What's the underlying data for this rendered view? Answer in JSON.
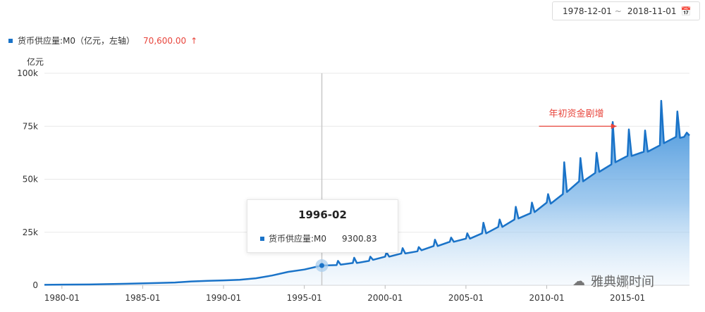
{
  "date_range": {
    "start": "1978-12-01",
    "separator": "~",
    "end": "2018-11-01",
    "icon": "calendar-icon"
  },
  "legend": {
    "label": "货币供应量:M0（亿元，左轴）",
    "value": "70,600.00",
    "arrow": "↑",
    "color": "#1a73c8"
  },
  "tooltip": {
    "title": "1996-02",
    "series": "货币供应量:M0",
    "value": "9300.83"
  },
  "watermark": {
    "text": "雅典娜时间",
    "icon": "wechat-icon"
  },
  "colors": {
    "series": "#1a73c8",
    "annotation": "#e8453c",
    "grid": "#e8e8e8"
  },
  "chart_data": {
    "type": "area",
    "ylabel": "亿元",
    "ylim": [
      0,
      100000
    ],
    "xlim": [
      "1978-12-01",
      "2018-11-01"
    ],
    "y_ticks": [
      "0",
      "25k",
      "50k",
      "75k",
      "100k"
    ],
    "x_ticks": [
      "1980-01",
      "1985-01",
      "1990-01",
      "1995-01",
      "2000-01",
      "2005-01",
      "2010-01",
      "2015-01"
    ],
    "grid": "horizontal",
    "series": [
      {
        "name": "货币供应量:M0",
        "points": [
          [
            "1978-12",
            212
          ],
          [
            "1980-01",
            300
          ],
          [
            "1982-01",
            400
          ],
          [
            "1984-01",
            700
          ],
          [
            "1986-01",
            1100
          ],
          [
            "1987-01",
            1300
          ],
          [
            "1988-01",
            1800
          ],
          [
            "1989-01",
            2100
          ],
          [
            "1990-01",
            2300
          ],
          [
            "1991-01",
            2600
          ],
          [
            "1992-01",
            3300
          ],
          [
            "1993-01",
            4600
          ],
          [
            "1994-01",
            6300
          ],
          [
            "1995-01",
            7400
          ],
          [
            "1996-02",
            9300.83
          ],
          [
            "1997-01",
            9500
          ],
          [
            "1997-02",
            11500
          ],
          [
            "1997-04",
            9700
          ],
          [
            "1998-01",
            10500
          ],
          [
            "1998-02",
            13000
          ],
          [
            "1998-04",
            10500
          ],
          [
            "1999-01",
            11500
          ],
          [
            "1999-02",
            13500
          ],
          [
            "1999-04",
            12000
          ],
          [
            "2000-01",
            13500
          ],
          [
            "2000-02",
            15500
          ],
          [
            "2000-04",
            13500
          ],
          [
            "2001-01",
            15000
          ],
          [
            "2001-02",
            17500
          ],
          [
            "2001-04",
            15000
          ],
          [
            "2002-01",
            16000
          ],
          [
            "2002-02",
            18000
          ],
          [
            "2002-04",
            16500
          ],
          [
            "2003-01",
            18500
          ],
          [
            "2003-02",
            21500
          ],
          [
            "2003-04",
            18500
          ],
          [
            "2004-01",
            20500
          ],
          [
            "2004-02",
            22500
          ],
          [
            "2004-04",
            20500
          ],
          [
            "2005-01",
            22000
          ],
          [
            "2005-02",
            24500
          ],
          [
            "2005-04",
            22000
          ],
          [
            "2006-01",
            24500
          ],
          [
            "2006-02",
            29500
          ],
          [
            "2006-04",
            24500
          ],
          [
            "2007-01",
            27500
          ],
          [
            "2007-02",
            31000
          ],
          [
            "2007-04",
            27500
          ],
          [
            "2008-01",
            31000
          ],
          [
            "2008-02",
            37000
          ],
          [
            "2008-04",
            31500
          ],
          [
            "2009-01",
            34000
          ],
          [
            "2009-02",
            39000
          ],
          [
            "2009-04",
            34500
          ],
          [
            "2010-01",
            39000
          ],
          [
            "2010-02",
            43000
          ],
          [
            "2010-04",
            38500
          ],
          [
            "2011-01",
            43000
          ],
          [
            "2011-02",
            58000
          ],
          [
            "2011-04",
            44000
          ],
          [
            "2012-01",
            49000
          ],
          [
            "2012-02",
            60000
          ],
          [
            "2012-04",
            49000
          ],
          [
            "2013-01",
            53000
          ],
          [
            "2013-02",
            62500
          ],
          [
            "2013-04",
            53500
          ],
          [
            "2014-01",
            57000
          ],
          [
            "2014-02",
            77000
          ],
          [
            "2014-04",
            58000
          ],
          [
            "2015-01",
            61000
          ],
          [
            "2015-02",
            73500
          ],
          [
            "2015-04",
            61000
          ],
          [
            "2016-01",
            63000
          ],
          [
            "2016-02",
            73000
          ],
          [
            "2016-04",
            63000
          ],
          [
            "2017-01",
            66000
          ],
          [
            "2017-02",
            87000
          ],
          [
            "2017-04",
            67000
          ],
          [
            "2018-01",
            70000
          ],
          [
            "2018-02",
            82000
          ],
          [
            "2018-04",
            69500
          ],
          [
            "2018-07",
            70000
          ],
          [
            "2018-09",
            72000
          ],
          [
            "2018-11",
            70600
          ]
        ]
      }
    ],
    "highlight": {
      "x": "1996-02",
      "y": 9300.83
    },
    "annotations": [
      {
        "text": "年初资金剧增",
        "x": "2011-11",
        "y": 75000
      }
    ]
  }
}
